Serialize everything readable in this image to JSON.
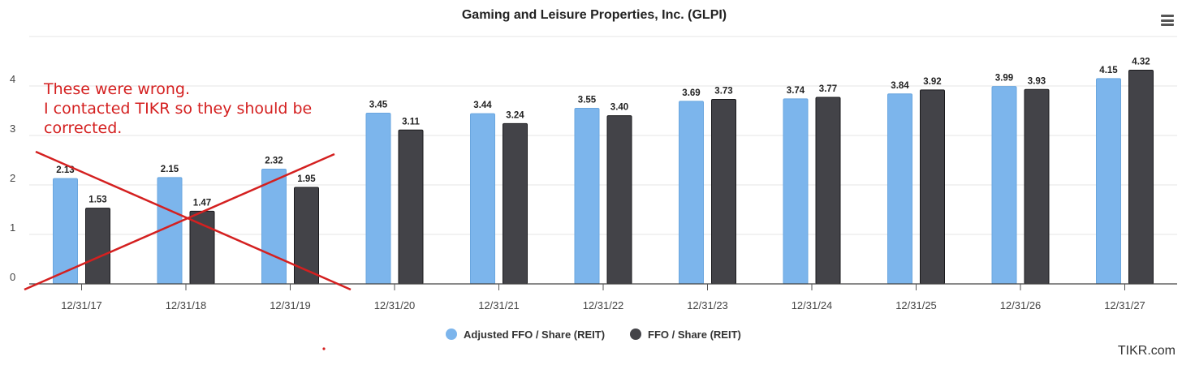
{
  "chart_data": {
    "type": "bar",
    "title": "Gaming and Leisure Properties, Inc. (GLPI)",
    "categories": [
      "12/31/17",
      "12/31/18",
      "12/31/19",
      "12/31/20",
      "12/31/21",
      "12/31/22",
      "12/31/23",
      "12/31/24",
      "12/31/25",
      "12/31/26",
      "12/31/27"
    ],
    "series": [
      {
        "name": "Adjusted FFO / Share (REIT)",
        "color": "#7cb5ec",
        "values": [
          2.13,
          2.15,
          2.32,
          3.45,
          3.44,
          3.55,
          3.69,
          3.74,
          3.84,
          3.99,
          4.15
        ]
      },
      {
        "name": "FFO / Share (REIT)",
        "color": "#434348",
        "values": [
          1.53,
          1.47,
          1.95,
          3.11,
          3.24,
          3.4,
          3.73,
          3.77,
          3.92,
          3.93,
          4.32
        ]
      }
    ],
    "ylim": [
      0,
      5
    ],
    "yticks": [
      0,
      1,
      2,
      3,
      4
    ],
    "grid": true,
    "legend": "bottom-center",
    "annotation": {
      "lines": [
        "These were wrong.",
        "I contacted TIKR so they should be",
        "corrected."
      ],
      "color": "#d42020",
      "cross_out_categories": [
        "12/31/17",
        "12/31/18",
        "12/31/19"
      ]
    }
  },
  "credit": "TIKR.com",
  "icons": {
    "menu": "hamburger-menu-icon"
  }
}
